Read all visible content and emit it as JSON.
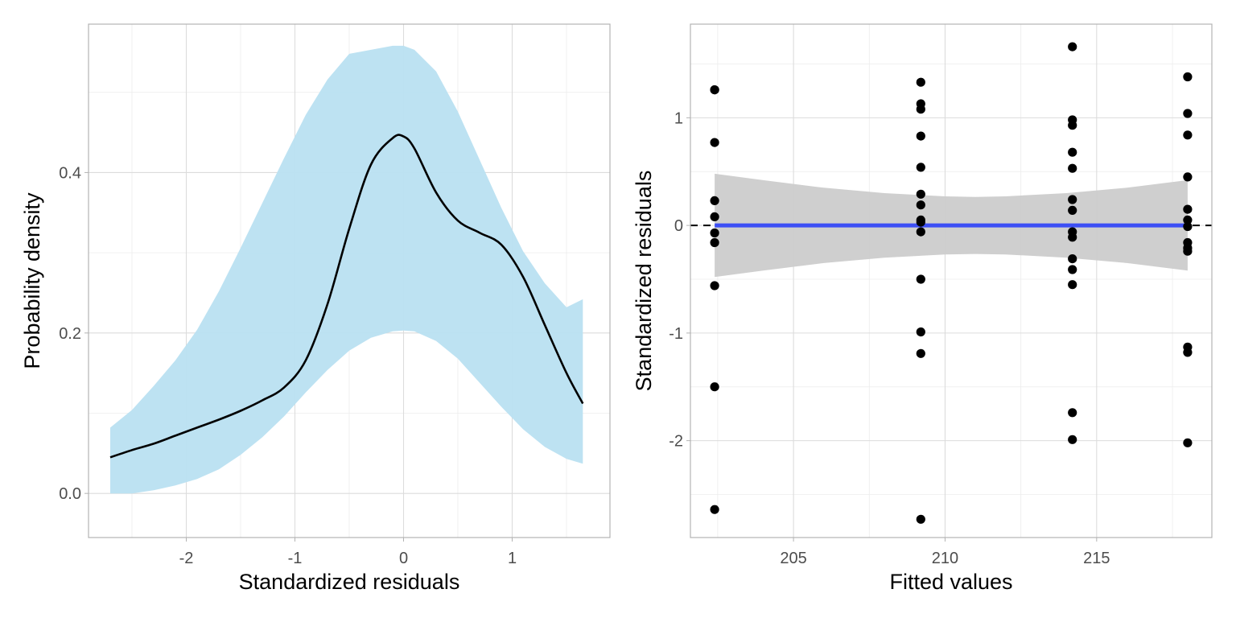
{
  "chart_data": [
    {
      "type": "area",
      "title": "",
      "xlabel": "Standardized residuals",
      "ylabel": "Probability density",
      "xlim": [
        -2.9,
        1.9
      ],
      "ylim": [
        -0.055,
        0.585
      ],
      "xticks": [
        -2,
        -1,
        0,
        1
      ],
      "xtick_labels": [
        "-2",
        "-1",
        "0",
        "1"
      ],
      "yticks": [
        0.0,
        0.2,
        0.4
      ],
      "ytick_labels": [
        "0.0",
        "0.2",
        "0.4"
      ],
      "grid": true,
      "band_color": "#b9e0f1",
      "line_color": "#000000",
      "x": [
        -2.7,
        -2.5,
        -2.3,
        -2.1,
        -1.9,
        -1.7,
        -1.5,
        -1.3,
        -1.1,
        -0.9,
        -0.7,
        -0.5,
        -0.3,
        -0.1,
        0.0,
        0.1,
        0.3,
        0.5,
        0.7,
        0.9,
        1.1,
        1.3,
        1.5,
        1.65
      ],
      "density": [
        0.045,
        0.054,
        0.062,
        0.072,
        0.082,
        0.092,
        0.103,
        0.116,
        0.132,
        0.166,
        0.236,
        0.33,
        0.41,
        0.443,
        0.445,
        0.43,
        0.375,
        0.34,
        0.325,
        0.31,
        0.27,
        0.21,
        0.15,
        0.112
      ],
      "lower": [
        0.0,
        0.0,
        0.004,
        0.01,
        0.018,
        0.03,
        0.048,
        0.07,
        0.096,
        0.126,
        0.154,
        0.178,
        0.194,
        0.202,
        0.203,
        0.202,
        0.19,
        0.168,
        0.138,
        0.108,
        0.08,
        0.058,
        0.043,
        0.037
      ],
      "upper": [
        0.082,
        0.104,
        0.134,
        0.166,
        0.204,
        0.252,
        0.306,
        0.362,
        0.418,
        0.472,
        0.516,
        0.548,
        0.553,
        0.558,
        0.558,
        0.553,
        0.526,
        0.476,
        0.416,
        0.356,
        0.302,
        0.262,
        0.232,
        0.242
      ]
    },
    {
      "type": "scatter",
      "title": "",
      "xlabel": "Fitted values",
      "ylabel": "Standardized residuals",
      "xlim": [
        201.6,
        218.8
      ],
      "ylim": [
        -2.9,
        1.87
      ],
      "xticks": [
        205,
        210,
        215
      ],
      "xtick_labels": [
        "205",
        "210",
        "215"
      ],
      "yticks": [
        -2,
        -1,
        0,
        1
      ],
      "ytick_labels": [
        "-2",
        "-1",
        "0",
        "1"
      ],
      "grid": true,
      "reference_line": {
        "y": 0,
        "style": "dashed",
        "color": "#000000"
      },
      "smooth": {
        "color": "#3d4ff5",
        "band_color": "#cccccc",
        "x": [
          202.4,
          204.0,
          206.0,
          208.0,
          210.0,
          211.0,
          212.0,
          214.0,
          216.0,
          218.0
        ],
        "fit": [
          0,
          0,
          0,
          0,
          0,
          0,
          0,
          0,
          0,
          0
        ],
        "upper": [
          0.48,
          0.42,
          0.35,
          0.3,
          0.27,
          0.265,
          0.27,
          0.3,
          0.35,
          0.42
        ],
        "lower": [
          -0.48,
          -0.42,
          -0.35,
          -0.3,
          -0.27,
          -0.265,
          -0.27,
          -0.3,
          -0.35,
          -0.42
        ]
      },
      "point_color": "#000000",
      "groups": [
        {
          "x": 202.4,
          "y": [
            1.26,
            1.26,
            0.77,
            0.23,
            0.08,
            -0.07,
            -0.16,
            -0.56,
            -1.5,
            -2.64
          ]
        },
        {
          "x": 209.2,
          "y": [
            1.33,
            1.13,
            1.08,
            0.83,
            0.54,
            0.29,
            0.19,
            0.05,
            0.03,
            -0.06,
            -0.5,
            -0.99,
            -1.19,
            -2.73
          ]
        },
        {
          "x": 214.2,
          "y": [
            1.66,
            0.98,
            0.93,
            0.68,
            0.53,
            0.24,
            0.14,
            -0.06,
            -0.11,
            -0.31,
            -0.41,
            -0.55,
            -1.74,
            -1.99
          ]
        },
        {
          "x": 218.0,
          "y": [
            1.38,
            1.04,
            0.84,
            0.45,
            0.15,
            0.05,
            -0.01,
            -0.16,
            -0.21,
            -0.24,
            -1.13,
            -1.18,
            -2.02
          ]
        }
      ]
    }
  ]
}
